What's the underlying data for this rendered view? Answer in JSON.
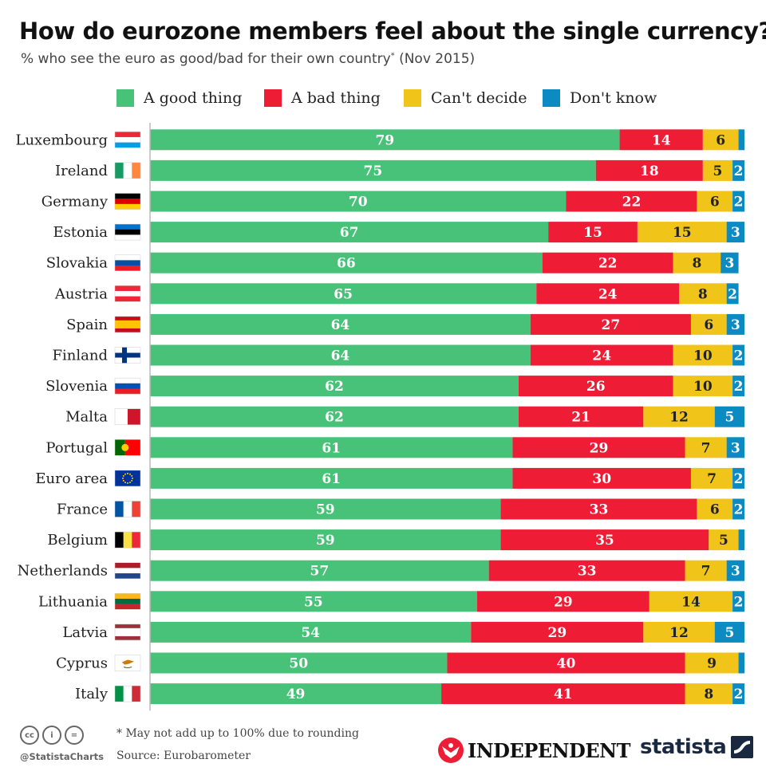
{
  "header": {
    "title": "How do eurozone members feel about the single currency?",
    "subtitle": "% who see the euro as good/bad for their own country",
    "subtitle_marker": "*",
    "subtitle_date": "(Nov 2015)"
  },
  "colors": {
    "good": "#48c278",
    "bad": "#ee1c35",
    "cant_decide": "#f0c419",
    "dont_know": "#0c8ac2",
    "axis": "#bbbbbb"
  },
  "chart_data": {
    "type": "bar",
    "orientation": "horizontal",
    "stacked": true,
    "legend_position": "top",
    "grid": false,
    "xlim": [
      0,
      100
    ],
    "categories": [
      "Luxembourg",
      "Ireland",
      "Germany",
      "Estonia",
      "Slovakia",
      "Austria",
      "Spain",
      "Finland",
      "Slovenia",
      "Malta",
      "Portugal",
      "Euro area",
      "France",
      "Belgium",
      "Netherlands",
      "Lithuania",
      "Latvia",
      "Cyprus",
      "Italy"
    ],
    "series": [
      {
        "name": "A good thing",
        "color": "#48c278",
        "values": [
          79,
          75,
          70,
          67,
          66,
          65,
          64,
          64,
          62,
          62,
          61,
          61,
          59,
          59,
          57,
          55,
          54,
          50,
          49
        ]
      },
      {
        "name": "A bad thing",
        "color": "#ee1c35",
        "values": [
          14,
          18,
          22,
          15,
          22,
          24,
          27,
          24,
          26,
          21,
          29,
          30,
          33,
          35,
          33,
          29,
          29,
          40,
          41
        ]
      },
      {
        "name": "Can't decide",
        "color": "#f0c419",
        "values": [
          6,
          5,
          6,
          15,
          8,
          8,
          6,
          10,
          10,
          12,
          7,
          7,
          6,
          5,
          7,
          14,
          12,
          9,
          8
        ]
      },
      {
        "name": "Don't know",
        "color": "#0c8ac2",
        "values": [
          1,
          2,
          2,
          3,
          3,
          2,
          3,
          2,
          2,
          5,
          3,
          2,
          2,
          1,
          3,
          2,
          5,
          1,
          2
        ]
      }
    ],
    "labels_shown": [
      [
        true,
        true,
        true,
        false
      ],
      [
        true,
        true,
        true,
        true
      ],
      [
        true,
        true,
        true,
        true
      ],
      [
        true,
        true,
        true,
        true
      ],
      [
        true,
        true,
        true,
        true
      ],
      [
        true,
        true,
        true,
        true
      ],
      [
        true,
        true,
        true,
        true
      ],
      [
        true,
        true,
        true,
        true
      ],
      [
        true,
        true,
        true,
        true
      ],
      [
        true,
        true,
        true,
        true
      ],
      [
        true,
        true,
        true,
        true
      ],
      [
        true,
        true,
        true,
        true
      ],
      [
        true,
        true,
        true,
        true
      ],
      [
        true,
        true,
        true,
        false
      ],
      [
        true,
        true,
        true,
        true
      ],
      [
        true,
        true,
        true,
        true
      ],
      [
        true,
        true,
        true,
        true
      ],
      [
        true,
        true,
        true,
        false
      ],
      [
        true,
        true,
        true,
        true
      ]
    ]
  },
  "flags": {
    "Luxembourg": {
      "type": "h",
      "colors": [
        "#ed2939",
        "#ffffff",
        "#00a1de"
      ]
    },
    "Ireland": {
      "type": "v",
      "colors": [
        "#169b62",
        "#ffffff",
        "#ff883e"
      ]
    },
    "Germany": {
      "type": "h",
      "colors": [
        "#000000",
        "#dd0000",
        "#ffce00"
      ]
    },
    "Estonia": {
      "type": "h",
      "colors": [
        "#0072ce",
        "#000000",
        "#ffffff"
      ]
    },
    "Slovakia": {
      "type": "h",
      "colors": [
        "#ffffff",
        "#0b4ea2",
        "#ee1c25"
      ]
    },
    "Austria": {
      "type": "h",
      "colors": [
        "#ed2939",
        "#ffffff",
        "#ed2939"
      ]
    },
    "Spain": {
      "type": "h3",
      "colors": [
        "#c60b1e",
        "#ffc400",
        "#c60b1e"
      ]
    },
    "Finland": {
      "type": "cross",
      "colors": [
        "#ffffff",
        "#003580"
      ]
    },
    "Slovenia": {
      "type": "h",
      "colors": [
        "#ffffff",
        "#0052b4",
        "#ed1c24"
      ]
    },
    "Malta": {
      "type": "v2",
      "colors": [
        "#ffffff",
        "#cf142b"
      ]
    },
    "Portugal": {
      "type": "v2w",
      "colors": [
        "#006600",
        "#ff0000"
      ]
    },
    "Euro area": {
      "type": "eu",
      "colors": [
        "#003399",
        "#ffcc00"
      ]
    },
    "France": {
      "type": "v",
      "colors": [
        "#0055a4",
        "#ffffff",
        "#ef4135"
      ]
    },
    "Belgium": {
      "type": "v",
      "colors": [
        "#000000",
        "#fae042",
        "#ed2939"
      ]
    },
    "Netherlands": {
      "type": "h",
      "colors": [
        "#ae1c28",
        "#ffffff",
        "#21468b"
      ]
    },
    "Lithuania": {
      "type": "h",
      "colors": [
        "#fdb913",
        "#006a44",
        "#c1272d"
      ]
    },
    "Latvia": {
      "type": "h3",
      "colors": [
        "#9e3039",
        "#ffffff",
        "#9e3039"
      ]
    },
    "Cyprus": {
      "type": "cy",
      "colors": [
        "#ffffff",
        "#d57800"
      ]
    },
    "Italy": {
      "type": "v",
      "colors": [
        "#009246",
        "#ffffff",
        "#ce2b37"
      ]
    }
  },
  "footer": {
    "footnote": "* May not add up to 100% due to rounding",
    "source": "Source: Eurobarometer",
    "handle": "@StatistaCharts",
    "cc_icons": [
      "cc-icon",
      "attribution-icon",
      "no-derivatives-icon"
    ],
    "publisher": "INDEPENDENT",
    "brand": "statista"
  }
}
